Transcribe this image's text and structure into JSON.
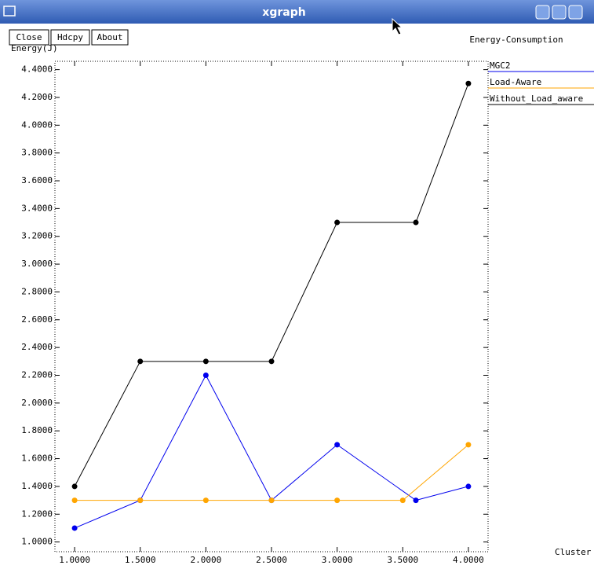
{
  "window": {
    "title": "xgraph",
    "buttons": [
      "Close",
      "Hdcpy",
      "About"
    ]
  },
  "chart_data": {
    "type": "line",
    "title": "Energy-Consumption",
    "y_label": "Energy(J)",
    "x_label": "Cluster",
    "series": [
      {
        "name": "MGC2",
        "color": "#0000ee",
        "x": [
          1.0,
          1.5,
          2.0,
          2.5,
          3.0,
          3.6,
          4.0
        ],
        "values": [
          1.1,
          1.3,
          2.2,
          1.3,
          1.7,
          1.3,
          1.4
        ]
      },
      {
        "name": "Load-Aware",
        "color": "#ffa500",
        "x": [
          1.0,
          1.5,
          2.0,
          2.5,
          3.0,
          3.5,
          4.0
        ],
        "values": [
          1.3,
          1.3,
          1.3,
          1.3,
          1.3,
          1.3,
          1.7
        ]
      },
      {
        "name": "Without_Load_aware",
        "color": "#000000",
        "x": [
          1.0,
          1.5,
          2.0,
          2.5,
          3.0,
          3.6,
          4.0
        ],
        "values": [
          1.4,
          2.3,
          2.3,
          2.3,
          3.3,
          3.3,
          4.3
        ]
      }
    ],
    "xlim": [
      0.85,
      4.15
    ],
    "xticks": [
      {
        "value": 1.0,
        "label": "1.0000"
      },
      {
        "value": 1.5,
        "label": "1.5000"
      },
      {
        "value": 2.0,
        "label": "2.0000"
      },
      {
        "value": 2.5,
        "label": "2.5000"
      },
      {
        "value": 3.0,
        "label": "3.0000"
      },
      {
        "value": 3.5,
        "label": "3.5000"
      },
      {
        "value": 4.0,
        "label": "4.0000"
      }
    ],
    "ylim": [
      0.93,
      4.46
    ],
    "yticks": [
      {
        "value": 1.0,
        "label": "1.0000"
      },
      {
        "value": 1.2,
        "label": "1.2000"
      },
      {
        "value": 1.4,
        "label": "1.4000"
      },
      {
        "value": 1.6,
        "label": "1.6000"
      },
      {
        "value": 1.8,
        "label": "1.8000"
      },
      {
        "value": 2.0,
        "label": "2.0000"
      },
      {
        "value": 2.2,
        "label": "2.2000"
      },
      {
        "value": 2.4,
        "label": "2.4000"
      },
      {
        "value": 2.6,
        "label": "2.6000"
      },
      {
        "value": 2.8,
        "label": "2.8000"
      },
      {
        "value": 3.0,
        "label": "3.0000"
      },
      {
        "value": 3.2,
        "label": "3.2000"
      },
      {
        "value": 3.4,
        "label": "3.4000"
      },
      {
        "value": 3.6,
        "label": "3.6000"
      },
      {
        "value": 3.8,
        "label": "3.8000"
      },
      {
        "value": 4.0,
        "label": "4.0000"
      },
      {
        "value": 4.2,
        "label": "4.2000"
      },
      {
        "value": 4.4,
        "label": "4.4000"
      }
    ],
    "legend": "right"
  }
}
